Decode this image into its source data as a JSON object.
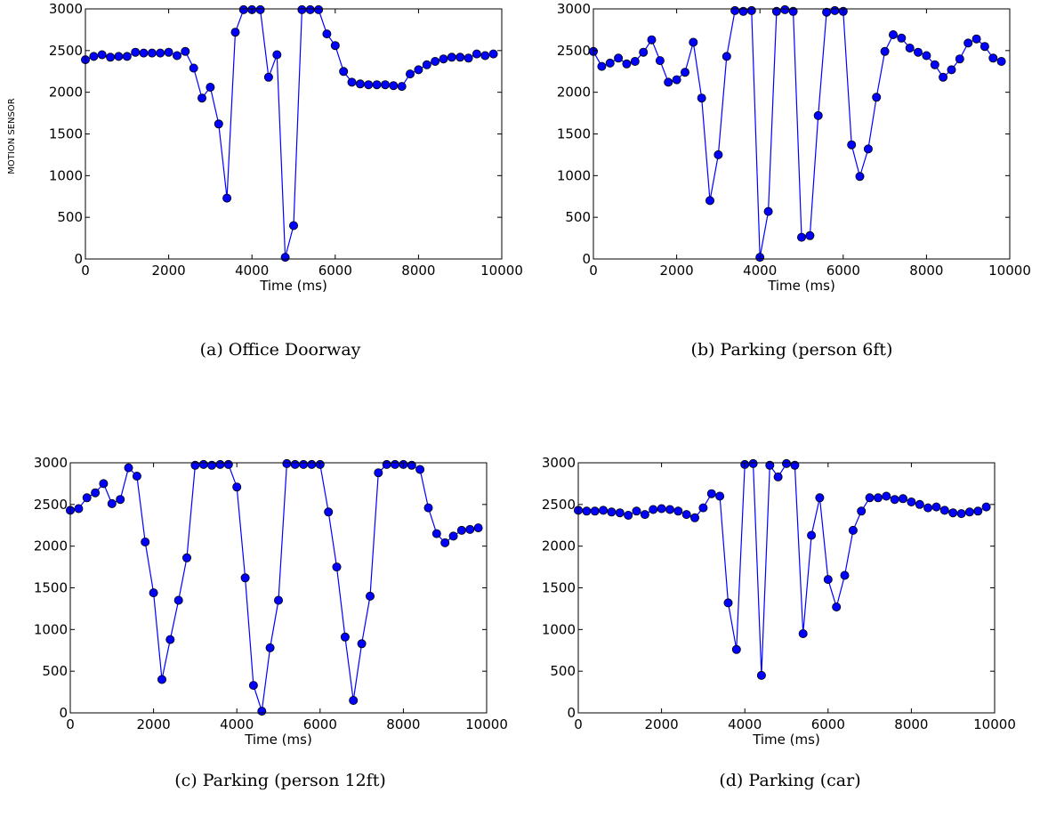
{
  "figure": {
    "ylabel": "MOTION SENSOR"
  },
  "chart_data": [
    {
      "type": "line",
      "caption": "(a) Office Doorway",
      "xlabel": "Time (ms)",
      "xlim": [
        0,
        10000
      ],
      "ylim": [
        0,
        3000
      ],
      "xticks": [
        0,
        2000,
        4000,
        6000,
        8000,
        10000
      ],
      "yticks": [
        0,
        500,
        1000,
        1500,
        2000,
        2500,
        3000
      ],
      "grid": false,
      "x": [
        0,
        200,
        400,
        600,
        800,
        1000,
        1200,
        1400,
        1600,
        1800,
        2000,
        2200,
        2400,
        2600,
        2800,
        3000,
        3200,
        3400,
        3600,
        3800,
        4000,
        4200,
        4400,
        4600,
        4800,
        5000,
        5200,
        5400,
        5600,
        5800,
        6000,
        6200,
        6400,
        6600,
        6800,
        7000,
        7200,
        7400,
        7600,
        7800,
        8000,
        8200,
        8400,
        8600,
        8800,
        9000,
        9200,
        9400,
        9600,
        9800
      ],
      "series": [
        {
          "values": [
            2390,
            2430,
            2450,
            2420,
            2430,
            2430,
            2480,
            2470,
            2470,
            2470,
            2480,
            2440,
            2490,
            2290,
            1930,
            2060,
            1620,
            730,
            2720,
            2990,
            2990,
            2990,
            2180,
            2450,
            20,
            400,
            2990,
            2990,
            2990,
            2700,
            2560,
            2250,
            2120,
            2100,
            2090,
            2090,
            2090,
            2080,
            2070,
            2220,
            2270,
            2330,
            2370,
            2400,
            2420,
            2420,
            2410,
            2460,
            2440,
            2460
          ]
        }
      ]
    },
    {
      "type": "line",
      "caption": "(b) Parking (person 6ft)",
      "xlabel": "Time (ms)",
      "xlim": [
        0,
        10000
      ],
      "ylim": [
        0,
        3000
      ],
      "xticks": [
        0,
        2000,
        4000,
        6000,
        8000,
        10000
      ],
      "yticks": [
        0,
        500,
        1000,
        1500,
        2000,
        2500,
        3000
      ],
      "grid": false,
      "x": [
        0,
        200,
        400,
        600,
        800,
        1000,
        1200,
        1400,
        1600,
        1800,
        2000,
        2200,
        2400,
        2600,
        2800,
        3000,
        3200,
        3400,
        3600,
        3800,
        4000,
        4200,
        4400,
        4600,
        4800,
        5000,
        5200,
        5400,
        5600,
        5800,
        6000,
        6200,
        6400,
        6600,
        6800,
        7000,
        7200,
        7400,
        7600,
        7800,
        8000,
        8200,
        8400,
        8600,
        8800,
        9000,
        9200,
        9400,
        9600,
        9800
      ],
      "series": [
        {
          "values": [
            2490,
            2310,
            2350,
            2410,
            2340,
            2370,
            2480,
            2630,
            2380,
            2120,
            2150,
            2240,
            2600,
            1930,
            700,
            1250,
            2430,
            2980,
            2970,
            2980,
            20,
            570,
            2970,
            2990,
            2970,
            260,
            280,
            1720,
            2960,
            2980,
            2970,
            1370,
            990,
            1320,
            1940,
            2490,
            2690,
            2650,
            2530,
            2480,
            2440,
            2330,
            2180,
            2270,
            2400,
            2590,
            2640,
            2550,
            2410,
            2370
          ]
        }
      ]
    },
    {
      "type": "line",
      "caption": "(c) Parking (person 12ft)",
      "xlabel": "Time (ms)",
      "xlim": [
        0,
        10000
      ],
      "ylim": [
        0,
        3000
      ],
      "xticks": [
        0,
        2000,
        4000,
        6000,
        8000,
        10000
      ],
      "yticks": [
        0,
        500,
        1000,
        1500,
        2000,
        2500,
        3000
      ],
      "grid": false,
      "x": [
        0,
        200,
        400,
        600,
        800,
        1000,
        1200,
        1400,
        1600,
        1800,
        2000,
        2200,
        2400,
        2600,
        2800,
        3000,
        3200,
        3400,
        3600,
        3800,
        4000,
        4200,
        4400,
        4600,
        4800,
        5000,
        5200,
        5400,
        5600,
        5800,
        6000,
        6200,
        6400,
        6600,
        6800,
        7000,
        7200,
        7400,
        7600,
        7800,
        8000,
        8200,
        8400,
        8600,
        8800,
        9000,
        9200,
        9400,
        9600,
        9800
      ],
      "series": [
        {
          "values": [
            2430,
            2450,
            2580,
            2640,
            2750,
            2510,
            2560,
            2940,
            2840,
            2050,
            1440,
            400,
            880,
            1350,
            1860,
            2970,
            2980,
            2970,
            2980,
            2980,
            2710,
            1620,
            330,
            20,
            780,
            1350,
            2990,
            2980,
            2980,
            2980,
            2980,
            2410,
            1750,
            910,
            150,
            830,
            1400,
            2880,
            2980,
            2980,
            2980,
            2970,
            2920,
            2460,
            2150,
            2040,
            2120,
            2190,
            2200,
            2220
          ]
        }
      ]
    },
    {
      "type": "line",
      "caption": "(d) Parking (car)",
      "xlabel": "Time (ms)",
      "xlim": [
        0,
        10000
      ],
      "ylim": [
        0,
        3000
      ],
      "xticks": [
        0,
        2000,
        4000,
        6000,
        8000,
        10000
      ],
      "yticks": [
        0,
        500,
        1000,
        1500,
        2000,
        2500,
        3000
      ],
      "grid": false,
      "x": [
        0,
        200,
        400,
        600,
        800,
        1000,
        1200,
        1400,
        1600,
        1800,
        2000,
        2200,
        2400,
        2600,
        2800,
        3000,
        3200,
        3400,
        3600,
        3800,
        4000,
        4200,
        4400,
        4600,
        4800,
        5000,
        5200,
        5400,
        5600,
        5800,
        6000,
        6200,
        6400,
        6600,
        6800,
        7000,
        7200,
        7400,
        7600,
        7800,
        8000,
        8200,
        8400,
        8600,
        8800,
        9000,
        9200,
        9400,
        9600,
        9800
      ],
      "series": [
        {
          "values": [
            2430,
            2420,
            2420,
            2430,
            2410,
            2400,
            2370,
            2420,
            2380,
            2440,
            2450,
            2440,
            2420,
            2380,
            2340,
            2460,
            2630,
            2600,
            1320,
            760,
            2980,
            2990,
            450,
            2970,
            2830,
            2990,
            2970,
            950,
            2130,
            2580,
            1600,
            1270,
            1650,
            2190,
            2420,
            2580,
            2580,
            2600,
            2560,
            2570,
            2530,
            2500,
            2460,
            2470,
            2430,
            2400,
            2390,
            2410,
            2420,
            2470
          ]
        }
      ]
    }
  ],
  "style": {
    "line_color": "#0000ff",
    "marker_fill": "#0000ff",
    "marker_edge": "#000000",
    "axis_color": "#000000"
  }
}
